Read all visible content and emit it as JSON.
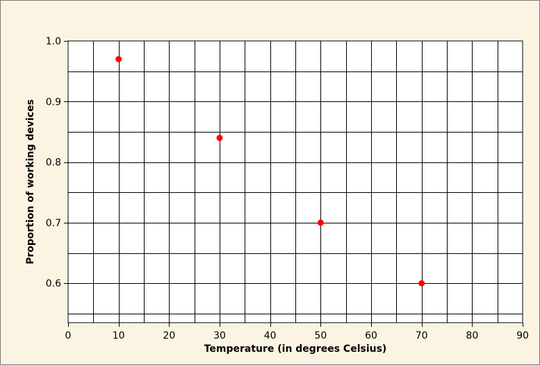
{
  "chart_data": {
    "type": "scatter",
    "title": "",
    "xlabel": "Temperature (in degrees Celsius)",
    "ylabel": "Proportion of working devices",
    "xlim": [
      0,
      90
    ],
    "ylim": [
      0.535,
      1.0
    ],
    "x_ticks": [
      0,
      10,
      20,
      30,
      40,
      50,
      60,
      70,
      80,
      90
    ],
    "x_tick_labels": [
      "0",
      "10",
      "20",
      "30",
      "40",
      "50",
      "60",
      "70",
      "80",
      "90"
    ],
    "y_ticks": [
      0.6,
      0.7,
      0.8,
      0.9,
      1.0
    ],
    "y_tick_labels": [
      "0.6",
      "0.7",
      "0.8",
      "0.9",
      "1.0"
    ],
    "x_grid_step": 5,
    "y_grid_step": 0.05,
    "grid": true,
    "legend": "none",
    "series": [
      {
        "color": "#ff0000",
        "x": [
          10,
          30,
          50,
          70
        ],
        "y": [
          0.97,
          0.84,
          0.7,
          0.6
        ]
      }
    ],
    "colors": {
      "background": "#fbf4e2",
      "plot_background": "#ffffff",
      "grid": "#000000",
      "point": "#ff0000"
    }
  }
}
